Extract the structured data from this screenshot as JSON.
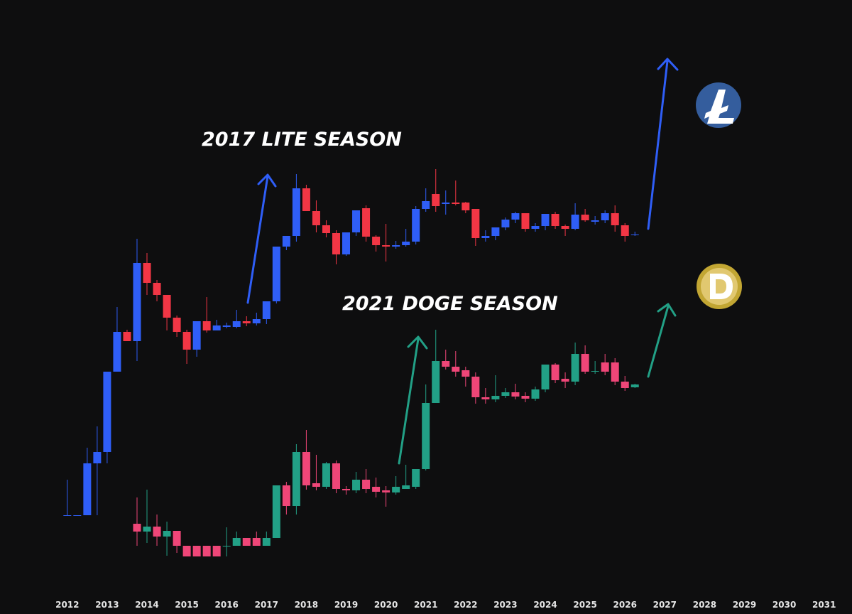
{
  "chart_data": {
    "type": "candlestick",
    "annotations": [
      "2017 LITE SEASON",
      "2021 DOGE SEASON"
    ],
    "xlim": [
      2010.31,
      2031.7
    ],
    "xticks": [
      2012,
      2013,
      2014,
      2015,
      2016,
      2017,
      2018,
      2019,
      2020,
      2021,
      2022,
      2023,
      2024,
      2025,
      2026,
      2027,
      2028,
      2029,
      2030,
      2031
    ],
    "ylim": [
      0,
      864
    ],
    "series": [
      {
        "up_color": "#2f5ef7",
        "down_color": "#f23645",
        "x": [
          2012,
          2012.25,
          2012.5,
          2012.75,
          2013,
          2013.25,
          2013.5,
          2013.75,
          2014,
          2014.25,
          2014.5,
          2014.75,
          2015,
          2015.25,
          2015.5,
          2015.75,
          2016,
          2016.25,
          2016.5,
          2016.75,
          2017,
          2017.25,
          2017.5,
          2017.75,
          2018,
          2018.25,
          2018.5,
          2018.75,
          2019,
          2019.25,
          2019.5,
          2019.75,
          2020,
          2020.25,
          2020.5,
          2020.75,
          2021,
          2021.25,
          2021.5,
          2021.75,
          2022,
          2022.25,
          2022.5,
          2022.75,
          2023,
          2023.25,
          2023.5,
          2023.75,
          2024,
          2024.25,
          2024.5,
          2024.75,
          2025,
          2025.25,
          2025.5,
          2025.75,
          2026,
          2026.25
        ],
        "open": [
          139,
          139,
          139,
          212,
          228,
          341,
          397,
          384,
          494,
          466,
          449,
          417,
          397,
          372,
          412,
          399,
          404,
          404,
          412,
          409,
          415,
          440,
          517,
          532,
          599,
          567,
          547,
          536,
          506,
          537,
          571,
          531,
          519,
          517,
          519,
          524,
          570,
          591,
          577,
          579,
          579,
          570,
          529,
          532,
          544,
          555,
          564,
          542,
          546,
          563,
          546,
          542,
          562,
          552,
          554,
          564,
          547,
          533
        ],
        "high": [
          189,
          139,
          234,
          264,
          341,
          432,
          400,
          528,
          508,
          470,
          449,
          420,
          400,
          412,
          446,
          414,
          410,
          428,
          419,
          424,
          440,
          517,
          532,
          619,
          604,
          582,
          554,
          540,
          537,
          568,
          575,
          533,
          549,
          525,
          542,
          574,
          599,
          626,
          596,
          610,
          580,
          570,
          540,
          544,
          558,
          566,
          564,
          550,
          563,
          566,
          548,
          578,
          570,
          560,
          568,
          575,
          550,
          538
        ],
        "low": [
          139,
          139,
          139,
          139,
          212,
          341,
          384,
          356,
          449,
          440,
          399,
          390,
          352,
          362,
          396,
          399,
          402,
          402,
          405,
          406,
          408,
          437,
          512,
          524,
          567,
          537,
          530,
          492,
          504,
          532,
          524,
          510,
          496,
          514,
          517,
          520,
          566,
          566,
          562,
          575,
          564,
          518,
          524,
          526,
          540,
          550,
          538,
          538,
          540,
          542,
          532,
          540,
          552,
          548,
          550,
          538,
          524,
          532
        ],
        "close": [
          139,
          139,
          212,
          228,
          341,
          397,
          384,
          494,
          466,
          449,
          417,
          397,
          372,
          412,
          399,
          406,
          406,
          412,
          409,
          415,
          440,
          517,
          532,
          599,
          567,
          547,
          536,
          506,
          537,
          568,
          531,
          519,
          517,
          519,
          524,
          570,
          581,
          574,
          579,
          577,
          568,
          529,
          532,
          544,
          555,
          564,
          542,
          546,
          563,
          546,
          542,
          562,
          554,
          554,
          564,
          547,
          532,
          534
        ]
      },
      {
        "up_color": "#22a086",
        "down_color": "#ef4678",
        "x": [
          2013.75,
          2014,
          2014.25,
          2014.5,
          2014.75,
          2015,
          2015.25,
          2015.5,
          2015.75,
          2016,
          2016.25,
          2016.5,
          2016.75,
          2017,
          2017.25,
          2017.5,
          2017.75,
          2018,
          2018.25,
          2018.5,
          2018.75,
          2019,
          2019.25,
          2019.5,
          2019.75,
          2020,
          2020.25,
          2020.5,
          2020.75,
          2021,
          2021.25,
          2021.5,
          2021.75,
          2022,
          2022.25,
          2022.5,
          2022.75,
          2023,
          2023.25,
          2023.5,
          2023.75,
          2024,
          2024.25,
          2024.5,
          2024.75,
          2025,
          2025.25,
          2025.5,
          2025.75,
          2026,
          2026.25
        ],
        "open": [
          127,
          116,
          123,
          109,
          117,
          96,
          96,
          96,
          96,
          96,
          96,
          107,
          107,
          96,
          107,
          181,
          152,
          228,
          184,
          179,
          212,
          176,
          174,
          189,
          179,
          174,
          171,
          176,
          179,
          204,
          297,
          356,
          348,
          343,
          334,
          305,
          302,
          307,
          312,
          307,
          303,
          316,
          351,
          331,
          327,
          366,
          341,
          354,
          354,
          327,
          319
        ],
        "high": [
          164,
          175,
          140,
          130,
          117,
          96,
          96,
          96,
          96,
          122,
          116,
          107,
          116,
          116,
          181,
          186,
          239,
          259,
          224,
          214,
          216,
          180,
          200,
          204,
          192,
          180,
          194,
          210,
          204,
          323,
          400,
          372,
          370,
          348,
          340,
          318,
          336,
          318,
          324,
          312,
          320,
          351,
          353,
          340,
          382,
          378,
          356,
          366,
          360,
          335,
          324
        ],
        "low": [
          96,
          100,
          96,
          82,
          86,
          81,
          81,
          81,
          81,
          81,
          96,
          96,
          96,
          96,
          107,
          140,
          140,
          175,
          174,
          176,
          170,
          168,
          170,
          170,
          164,
          151,
          168,
          176,
          176,
          202,
          297,
          344,
          334,
          320,
          296,
          296,
          298,
          304,
          302,
          298,
          300,
          312,
          325,
          318,
          322,
          338,
          338,
          336,
          322,
          314,
          318
        ],
        "close": [
          116,
          123,
          109,
          117,
          96,
          81,
          81,
          81,
          81,
          96,
          107,
          96,
          96,
          107,
          181,
          152,
          228,
          181,
          179,
          212,
          176,
          174,
          189,
          176,
          172,
          171,
          179,
          181,
          204,
          297,
          356,
          348,
          341,
          334,
          305,
          302,
          307,
          312,
          306,
          303,
          316,
          351,
          329,
          327,
          366,
          341,
          342,
          341,
          327,
          318,
          323
        ]
      }
    ]
  }
}
